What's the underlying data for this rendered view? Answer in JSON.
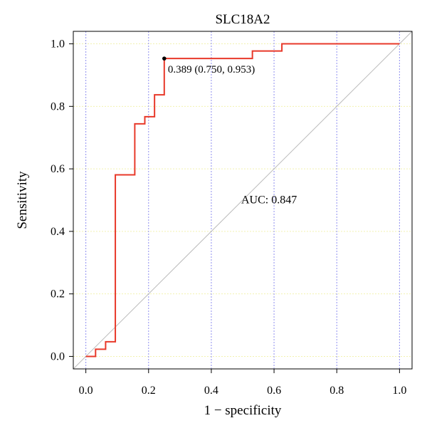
{
  "chart_data": {
    "type": "line",
    "title": "SLC18A2",
    "xlabel": "1 − specificity",
    "ylabel": "Sensitivity",
    "xlim": [
      -0.04,
      1.04
    ],
    "ylim": [
      -0.04,
      1.04
    ],
    "x_ticks": [
      0.0,
      0.2,
      0.4,
      0.6,
      0.8,
      1.0
    ],
    "y_ticks": [
      0.0,
      0.2,
      0.4,
      0.6,
      0.8,
      1.0
    ],
    "x_tick_labels": [
      "0.0",
      "0.2",
      "0.4",
      "0.6",
      "0.8",
      "1.0"
    ],
    "y_tick_labels": [
      "0.0",
      "0.2",
      "0.4",
      "0.6",
      "0.8",
      "1.0"
    ],
    "grid": true,
    "series": [
      {
        "type": "step",
        "color": "#e8392a",
        "x": [
          0.0,
          0.031,
          0.031,
          0.063,
          0.063,
          0.094,
          0.094,
          0.156,
          0.156,
          0.188,
          0.188,
          0.219,
          0.219,
          0.25,
          0.25,
          0.531,
          0.531,
          0.625,
          0.625,
          1.0
        ],
        "y": [
          0.0,
          0.0,
          0.023,
          0.023,
          0.047,
          0.047,
          0.581,
          0.581,
          0.744,
          0.744,
          0.767,
          0.767,
          0.837,
          0.837,
          0.953,
          0.953,
          0.977,
          0.977,
          1.0,
          1.0
        ]
      }
    ],
    "reference_line": {
      "x": [
        -0.04,
        1.04
      ],
      "y": [
        -0.04,
        1.04
      ],
      "color": "#bbbbbb"
    },
    "threshold_point": {
      "x": 0.25,
      "y": 0.953,
      "label": "0.389 (0.750, 0.953)"
    },
    "auc_label": {
      "text": "AUC: 0.847",
      "x": 0.5,
      "y": 0.49,
      "color": "#e8392a"
    },
    "colors": {
      "roc": "#e8392a",
      "grid_v": "#8f8ff0",
      "grid_h": "#f2f2b0",
      "diagonal": "#bbbbbb"
    }
  }
}
